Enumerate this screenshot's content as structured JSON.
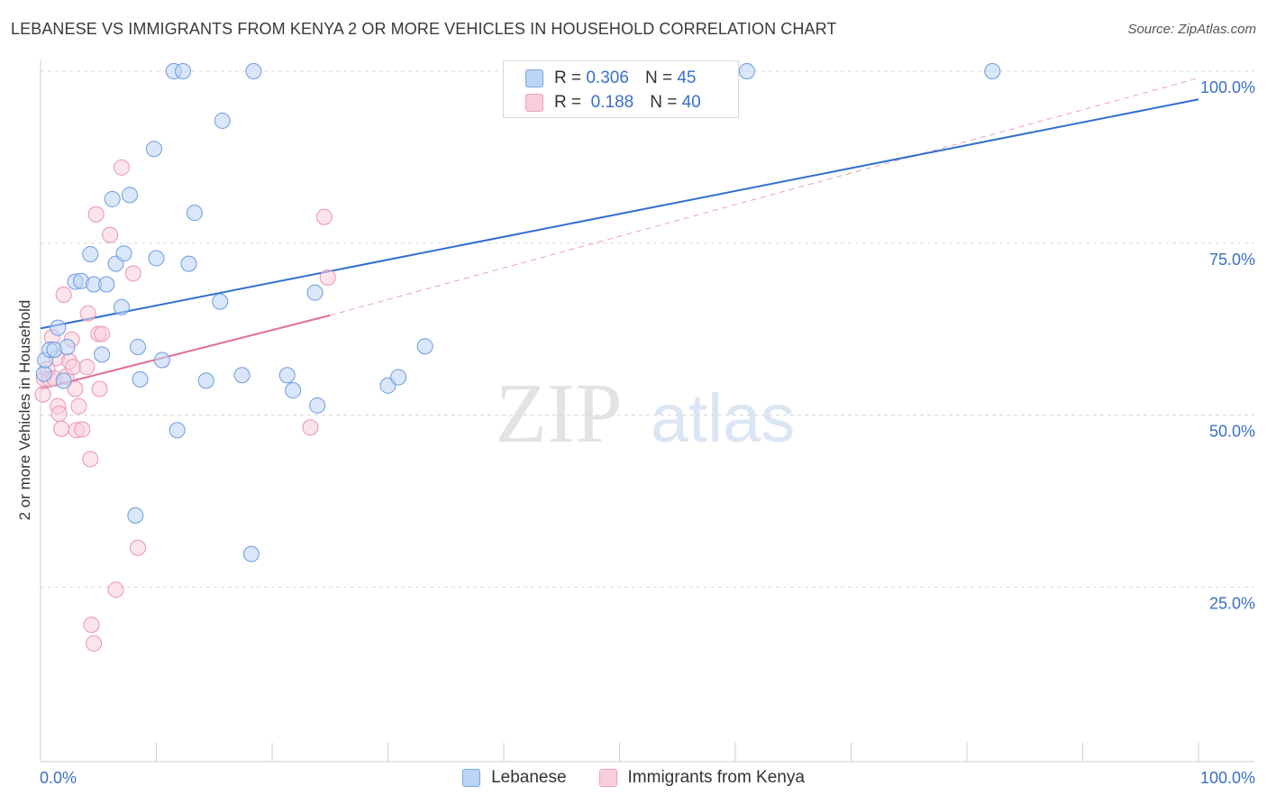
{
  "header": {
    "title": "LEBANESE VS IMMIGRANTS FROM KENYA 2 OR MORE VEHICLES IN HOUSEHOLD CORRELATION CHART",
    "source": "Source: ZipAtlas.com"
  },
  "watermark": {
    "zip": "ZIP",
    "atlas": "atlas"
  },
  "legend": {
    "r_label": "R =",
    "n_label": "N =",
    "rows": [
      {
        "r": "0.306",
        "n": "45",
        "color": "#7aa6e0"
      },
      {
        "r": "0.188",
        "n": "40",
        "color": "#eea0ba"
      }
    ]
  },
  "chart_data": {
    "type": "scatter",
    "title": "LEBANESE VS IMMIGRANTS FROM KENYA 2 OR MORE VEHICLES IN HOUSEHOLD CORRELATION CHART",
    "xlabel": "",
    "ylabel": "2 or more Vehicles in Household",
    "xlim": [
      0,
      100
    ],
    "ylim": [
      0,
      100
    ],
    "x_tick_labels": [
      "0.0%",
      "100.0%"
    ],
    "y_tick_labels": [
      "100.0%",
      "75.0%",
      "50.0%",
      "25.0%"
    ],
    "y_tick_values": [
      100,
      75,
      50,
      25
    ],
    "series": [
      {
        "name": "Lebanese",
        "color": "#5b8fd6",
        "fill": "#bcd4f5",
        "trend": {
          "x": [
            0,
            100
          ],
          "y": [
            62.6,
            95.9
          ]
        },
        "points": [
          [
            0.3,
            56
          ],
          [
            0.4,
            58
          ],
          [
            0.8,
            59.5
          ],
          [
            1.2,
            59.5
          ],
          [
            1.5,
            62.7
          ],
          [
            2.0,
            55
          ],
          [
            2.3,
            59.9
          ],
          [
            3.0,
            69.4
          ],
          [
            3.5,
            69.5
          ],
          [
            4.3,
            73.4
          ],
          [
            4.6,
            69
          ],
          [
            5.3,
            58.8
          ],
          [
            5.7,
            69
          ],
          [
            6.2,
            81.4
          ],
          [
            6.5,
            72
          ],
          [
            7.0,
            65.7
          ],
          [
            7.2,
            73.5
          ],
          [
            7.7,
            82
          ],
          [
            8.2,
            35.4
          ],
          [
            8.4,
            59.9
          ],
          [
            8.6,
            55.2
          ],
          [
            9.8,
            88.7
          ],
          [
            10.0,
            72.8
          ],
          [
            10.5,
            58
          ],
          [
            11.5,
            100
          ],
          [
            11.8,
            47.8
          ],
          [
            12.3,
            100
          ],
          [
            12.8,
            72
          ],
          [
            13.3,
            79.4
          ],
          [
            14.3,
            55
          ],
          [
            15.5,
            66.5
          ],
          [
            15.7,
            92.8
          ],
          [
            17.4,
            55.8
          ],
          [
            18.2,
            29.8
          ],
          [
            18.4,
            100
          ],
          [
            21.3,
            55.8
          ],
          [
            21.8,
            53.6
          ],
          [
            23.7,
            67.8
          ],
          [
            23.9,
            51.4
          ],
          [
            30.0,
            54.3
          ],
          [
            30.9,
            55.5
          ],
          [
            33.2,
            60
          ],
          [
            61.0,
            100
          ],
          [
            82.2,
            100
          ]
        ]
      },
      {
        "name": "Immigrants from Kenya",
        "color": "#e06d97",
        "fill": "#f9cddb",
        "trend": {
          "x": [
            0,
            25
          ],
          "y": [
            53.8,
            64.5
          ]
        },
        "trend_dashed": {
          "x": [
            25,
            100
          ],
          "y": [
            64.5,
            99
          ]
        },
        "points": [
          [
            0.2,
            53
          ],
          [
            0.3,
            55.3
          ],
          [
            0.6,
            56.7
          ],
          [
            0.8,
            55.2
          ],
          [
            1.0,
            61.3
          ],
          [
            1.2,
            55.3
          ],
          [
            1.4,
            58.3
          ],
          [
            1.5,
            51.3
          ],
          [
            1.6,
            50.2
          ],
          [
            1.8,
            48
          ],
          [
            2.0,
            67.5
          ],
          [
            2.2,
            55.6
          ],
          [
            2.5,
            57.8
          ],
          [
            2.7,
            61
          ],
          [
            2.8,
            57
          ],
          [
            3.0,
            53.8
          ],
          [
            3.1,
            47.8
          ],
          [
            3.3,
            51.3
          ],
          [
            3.6,
            47.9
          ],
          [
            4.0,
            57
          ],
          [
            4.1,
            64.8
          ],
          [
            4.3,
            43.6
          ],
          [
            4.4,
            19.5
          ],
          [
            4.6,
            16.8
          ],
          [
            4.8,
            79.2
          ],
          [
            5.0,
            61.8
          ],
          [
            5.1,
            53.8
          ],
          [
            5.3,
            61.8
          ],
          [
            6.0,
            76.2
          ],
          [
            6.5,
            24.6
          ],
          [
            7.0,
            86
          ],
          [
            8.0,
            70.6
          ],
          [
            8.4,
            30.7
          ],
          [
            23.3,
            48.2
          ],
          [
            24.5,
            78.8
          ],
          [
            24.8,
            70
          ]
        ]
      }
    ]
  },
  "bottom_legend": [
    "Lebanese",
    "Immigrants from Kenya"
  ]
}
